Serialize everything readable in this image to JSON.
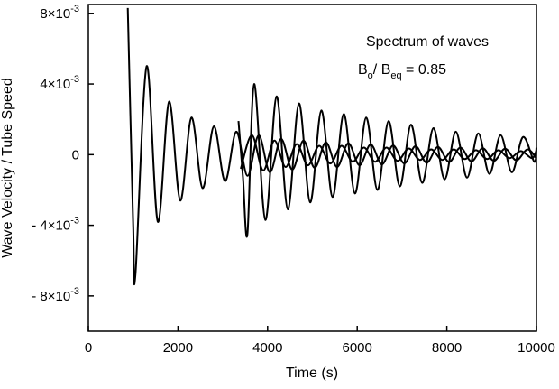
{
  "chart_data": {
    "type": "line",
    "xlabel": "Time  (s)",
    "ylabel": "Wave Velocity / Tube Speed",
    "xlim": [
      0,
      10000
    ],
    "ylim": [
      -0.01,
      0.0085
    ],
    "grid": false,
    "x_ticks": [
      {
        "value": 0,
        "label": "0"
      },
      {
        "value": 2000,
        "label": "2000"
      },
      {
        "value": 4000,
        "label": "4000"
      },
      {
        "value": 6000,
        "label": "6000"
      },
      {
        "value": 8000,
        "label": "8000"
      },
      {
        "value": 10000,
        "label": "10000"
      }
    ],
    "y_ticks": [
      {
        "value": 0.008,
        "label": "8×10",
        "exp": "-3"
      },
      {
        "value": 0.004,
        "label": "4×10",
        "exp": "-3"
      },
      {
        "value": 0,
        "label": "0",
        "exp": ""
      },
      {
        "value": -0.004,
        "label": "- 4×10",
        "exp": "-3"
      },
      {
        "value": -0.008,
        "label": "- 8×10",
        "exp": "-3"
      }
    ],
    "annotations": {
      "line1": "Spectrum of waves",
      "b_symbol": "B",
      "b_sub": "o",
      "slash": "/ B",
      "eq_sub": "eq",
      "ratio": " = 0.85"
    },
    "series": [
      {
        "x": [
          880,
          1000,
          1050,
          1300,
          1550,
          1800,
          2050,
          2300,
          2550,
          2800,
          3050,
          3300,
          3550,
          3800,
          4050,
          4300,
          4550,
          4800,
          5050,
          5300,
          5550,
          5800,
          6050,
          6300,
          6550,
          6800,
          7050,
          7300,
          7550,
          7800,
          8050,
          8300,
          8550,
          8800,
          9050,
          9300,
          9550,
          9800,
          10000
        ],
        "y": [
          0.0083,
          -0.004,
          -0.0068,
          0.005,
          -0.0038,
          0.003,
          -0.0026,
          0.0021,
          -0.0019,
          0.0016,
          -0.0015,
          0.0013,
          -0.0012,
          0.0011,
          -0.001,
          0.0009,
          -0.00085,
          0.0008,
          -0.00075,
          0.0007,
          -0.0007,
          0.00065,
          -0.0006,
          0.00058,
          -0.00055,
          0.00052,
          -0.0005,
          0.00048,
          -0.00046,
          0.00044,
          -0.00042,
          0.0004,
          -0.00038,
          0.00036,
          -0.00035,
          0.00034,
          -0.00032,
          0.0003,
          -0.00022
        ]
      },
      {
        "x": [
          3350,
          3450,
          3550,
          3700,
          3950,
          4200,
          4450,
          4700,
          4950,
          5200,
          5450,
          5700,
          5950,
          6200,
          6450,
          6700,
          6950,
          7200,
          7450,
          7700,
          7950,
          8200,
          8450,
          8700,
          8950,
          9200,
          9450,
          9700,
          9950,
          10000
        ],
        "y": [
          0.0019,
          -0.0013,
          -0.0045,
          0.004,
          -0.0037,
          0.0033,
          -0.0031,
          0.0029,
          -0.0027,
          0.0025,
          -0.0024,
          0.0023,
          -0.0022,
          0.0021,
          -0.002,
          0.0019,
          -0.0018,
          0.0017,
          -0.0016,
          0.0015,
          -0.0014,
          0.0013,
          -0.0013,
          0.0012,
          -0.0011,
          0.0011,
          -0.001,
          0.001,
          -0.0004,
          0.0004
        ]
      },
      {
        "x": [
          3400,
          3650,
          3900,
          4150,
          4400,
          4650,
          4900,
          5150,
          5400,
          5650,
          5900,
          6150,
          6400,
          6650,
          6900,
          7150,
          7400,
          7650,
          7900,
          8150,
          8400,
          8650,
          8900,
          9150,
          9400,
          9650,
          9900,
          10000
        ],
        "y": [
          -0.0008,
          0.0011,
          -0.0009,
          0.0008,
          -0.0007,
          0.0006,
          -0.0006,
          0.0005,
          -0.0005,
          0.0005,
          -0.0004,
          0.0004,
          -0.0004,
          0.0004,
          -0.00035,
          0.00035,
          -0.0003,
          0.0003,
          -0.0003,
          0.0003,
          -0.00025,
          0.00025,
          -0.00025,
          0.00025,
          -0.0002,
          0.0002,
          -0.0002,
          0.00025
        ]
      }
    ]
  }
}
